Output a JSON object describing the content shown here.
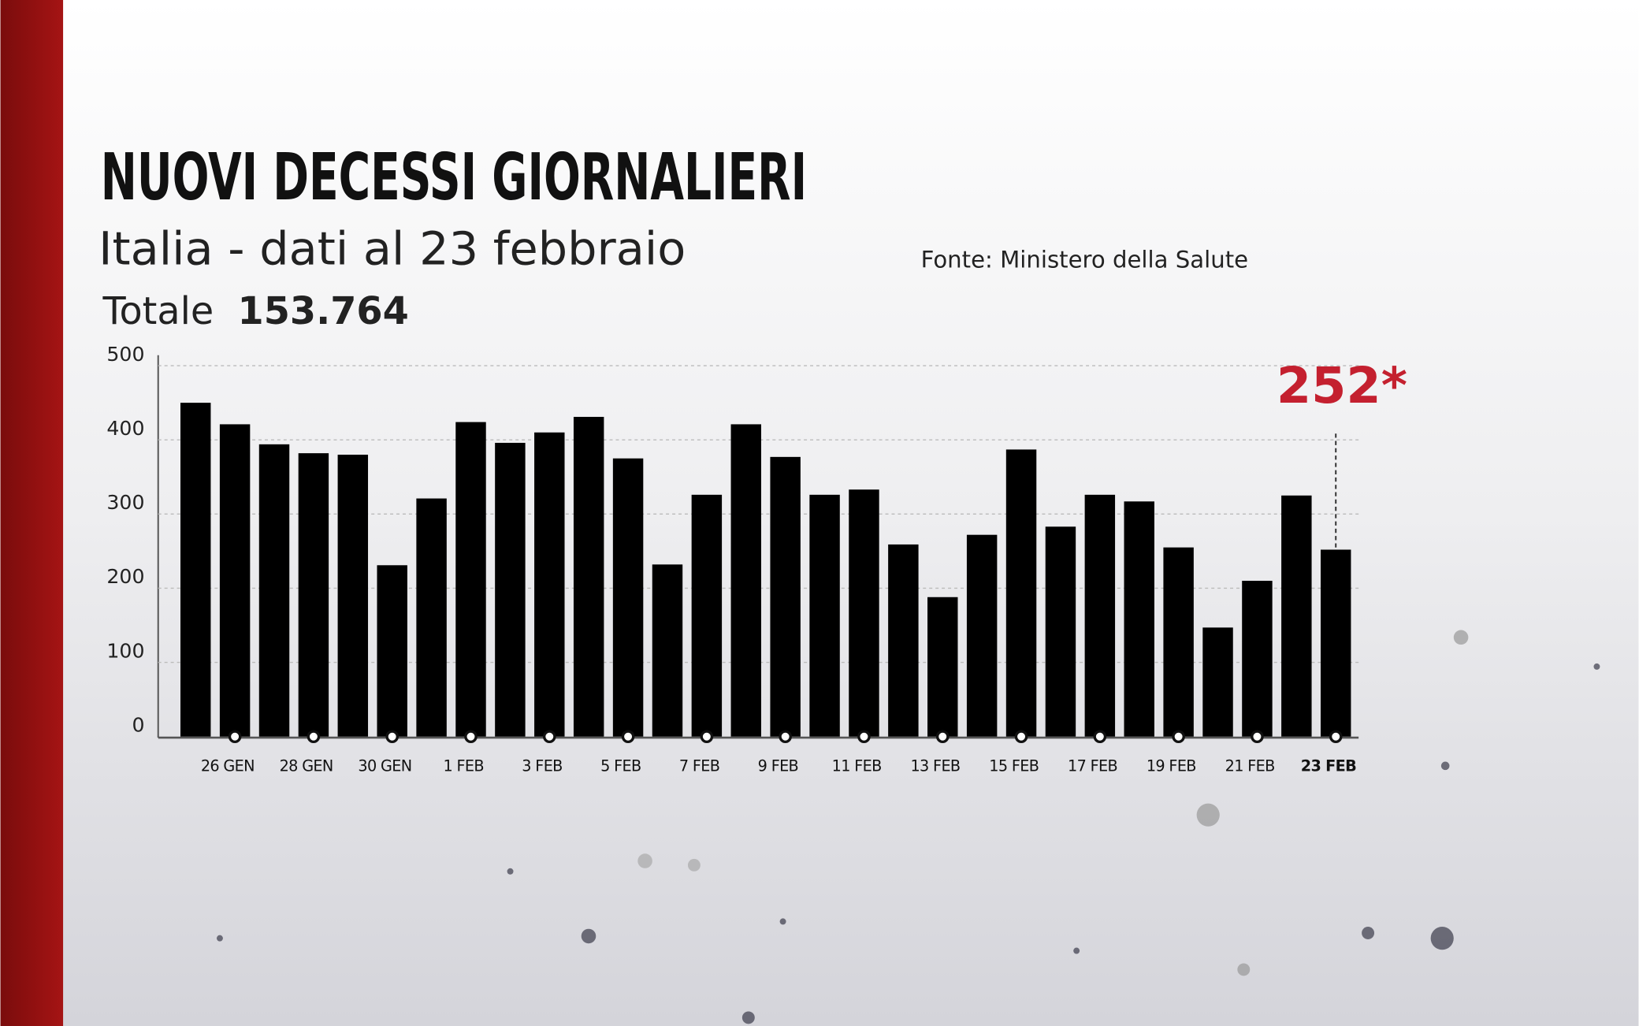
{
  "chart_data": {
    "type": "bar",
    "title": "NUOVI DECESSI GIORNALIERI",
    "subtitle": "Italia - dati al 23 febbraio",
    "source": "Fonte: Ministero della Salute",
    "total_label": "Totale",
    "total_value": "153.764",
    "annotation": "252*",
    "categories": [
      null,
      "26 GEN",
      null,
      "28 GEN",
      null,
      "30 GEN",
      null,
      "1 FEB",
      null,
      "3 FEB",
      null,
      "5 FEB",
      null,
      "7 FEB",
      null,
      "9 FEB",
      null,
      "11 FEB",
      null,
      "13 FEB",
      null,
      "15 FEB",
      null,
      "17 FEB",
      null,
      "19 FEB",
      null,
      "21 FEB",
      null,
      "23 FEB"
    ],
    "values": [
      450,
      421,
      394,
      382,
      380,
      231,
      321,
      424,
      396,
      410,
      431,
      375,
      232,
      326,
      421,
      377,
      326,
      333,
      259,
      188,
      272,
      387,
      283,
      326,
      317,
      255,
      147,
      210,
      325,
      252
    ],
    "color": "#000000",
    "annotation_color": "#c4202f",
    "ylim": [
      0,
      500
    ],
    "yticks": [
      0,
      100,
      200,
      300,
      400,
      500
    ],
    "grid": true
  }
}
